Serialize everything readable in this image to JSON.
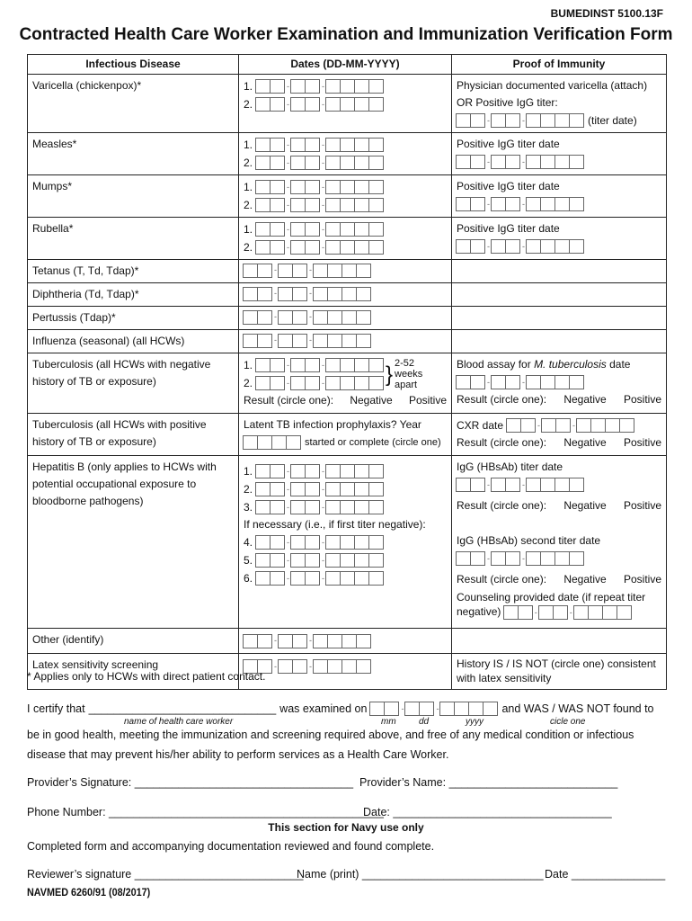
{
  "header": {
    "code": "BUMEDINST 5100.13F",
    "title": "Contracted Health Care Worker Examination and Immunization Verification Form"
  },
  "table": {
    "headers": [
      "Infectious Disease",
      "Dates (DD-MM-YYYY)",
      "Proof of Immunity"
    ],
    "rows": {
      "varicella": {
        "disease": "Varicella (chickenpox)*",
        "proof1": "Physician documented varicella (attach)",
        "proof2": "OR Positive IgG titer:",
        "titer_date": "(titer date)"
      },
      "measles": {
        "disease": "Measles*",
        "proof": "Positive IgG titer date"
      },
      "mumps": {
        "disease": "Mumps*",
        "proof": "Positive IgG titer date"
      },
      "rubella": {
        "disease": "Rubella*",
        "proof": "Positive IgG titer date"
      },
      "tetanus": {
        "disease": "Tetanus (T, Td, Tdap)*"
      },
      "diphtheria": {
        "disease": "Diphtheria (Td, Tdap)*"
      },
      "pertussis": {
        "disease": "Pertussis (Tdap)*"
      },
      "influenza": {
        "disease": "Influenza (seasonal) (all HCWs)"
      },
      "tb_neg": {
        "disease": "Tuberculosis (all HCWs with negative history of TB or exposure)",
        "interval": "2-52 weeks apart",
        "result": "Result (circle one):",
        "neg": "Negative",
        "pos": "Positive",
        "proof": "Blood assay for",
        "proof_italic": "M. tuberculosis",
        "proof_end": "date"
      },
      "tb_pos": {
        "disease": "Tuberculosis (all HCWs with positive history of TB or exposure)",
        "prophylaxis": "Latent TB infection prophylaxis? Year",
        "started": "started or complete (circle one)",
        "cxr": "CXR date"
      },
      "hepb": {
        "disease": "Hepatitis B (only applies to HCWs with potential occupational exposure to bloodborne pathogens)",
        "if_necessary": "If necessary (i.e., if first titer negative):",
        "proof1": "IgG (HBsAb) titer date",
        "proof2": "IgG (HBsAb) second titer date",
        "counseling": "Counseling provided date (if repeat titer negative)"
      },
      "other": {
        "disease": "Other (identify)"
      },
      "latex": {
        "disease": "Latex sensitivity screening",
        "proof": "History IS / IS NOT (circle one) consistent with latex sensitivity"
      }
    },
    "nums": [
      "1.",
      "2.",
      "3.",
      "4.",
      "5.",
      "6."
    ]
  },
  "footnote": "* Applies only to HCWs with direct patient contact.",
  "certify": {
    "pre": "I certify that",
    "blank": "______________________________",
    "mid": "was examined on",
    "post": "and WAS / WAS NOT found to",
    "name_hint": "name of health care worker",
    "mm": "mm",
    "dd": "dd",
    "yyyy": "yyyy",
    "circle": "cicle one",
    "line2": "be in good health, meeting the immunization and screening required above, and free of any medical condition or infectious",
    "line3": "disease that may prevent his/her ability to perform services as a Health Care Worker."
  },
  "signatures": {
    "provider_sig": "Provider’s Signature: ___________________________________",
    "provider_name": "Provider’s Name: ___________________________",
    "phone": "Phone Number: ____________________________________________",
    "date": "Date: ___________________________________",
    "navy": "This section for Navy use only",
    "completed": "Completed form and accompanying documentation reviewed and found complete.",
    "reviewer": "Reviewer’s signature ___________________________",
    "name_print": "Name (print) _____________________________",
    "date2": "Date _______________"
  },
  "form_number": "NAVMED 6260/91 (08/2017)"
}
